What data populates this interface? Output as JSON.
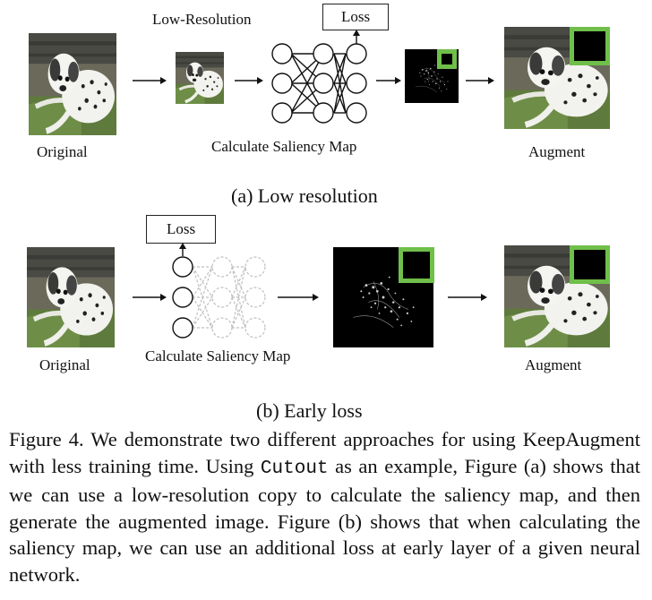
{
  "panel_a": {
    "low_resolution_label": "Low-Resolution",
    "loss_label": "Loss",
    "original_label": "Original",
    "saliency_label": "Calculate Saliency Map",
    "augment_label": "Augment",
    "caption": "(a) Low resolution"
  },
  "panel_b": {
    "loss_label": "Loss",
    "original_label": "Original",
    "saliency_label": "Calculate Saliency Map",
    "augment_label": "Augment",
    "caption": "(b) Early loss"
  },
  "figure_caption": {
    "prefix": "Figure 4.   We demonstrate two different approaches for using KeepAugment with less training time. Using ",
    "code": "Cutout",
    "suffix": " as an example, Figure (a) shows that we can use a low-resolution copy to calculate the saliency map, and then generate the augmented image. Figure (b) shows that when calculating the saliency map, we can use an additional loss at early layer of a given neural network."
  },
  "colors": {
    "highlight_box": "#6fbf4a"
  }
}
